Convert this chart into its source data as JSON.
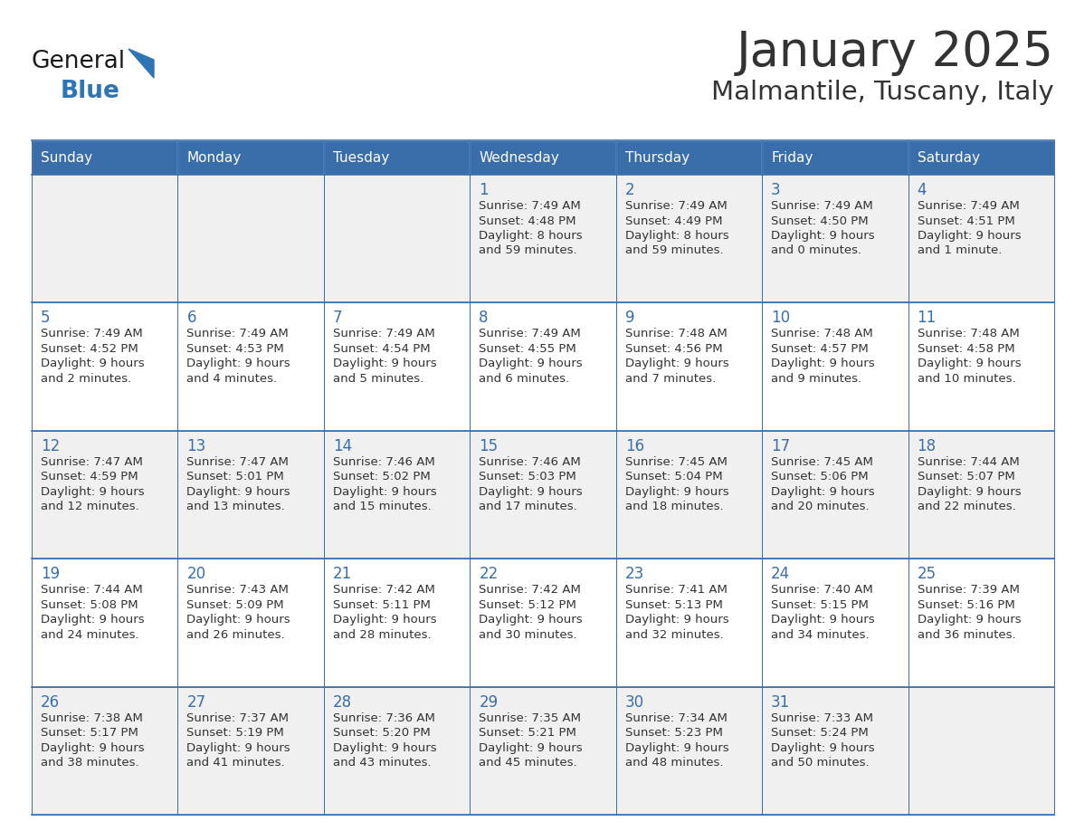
{
  "title": "January 2025",
  "subtitle": "Malmantile, Tuscany, Italy",
  "days_of_week": [
    "Sunday",
    "Monday",
    "Tuesday",
    "Wednesday",
    "Thursday",
    "Friday",
    "Saturday"
  ],
  "header_bg": "#3A6EAA",
  "header_text": "#FFFFFF",
  "cell_bg_white": "#FFFFFF",
  "cell_bg_gray": "#F0F0F0",
  "day_number_color": "#3A6EAA",
  "text_color": "#333333",
  "line_color": "#3A6EAA",
  "logo_general_color": "#1A1A1A",
  "logo_blue_color": "#2E75B6",
  "calendar": [
    [
      {
        "day": null,
        "sunrise": null,
        "sunset": null,
        "daylight": null
      },
      {
        "day": null,
        "sunrise": null,
        "sunset": null,
        "daylight": null
      },
      {
        "day": null,
        "sunrise": null,
        "sunset": null,
        "daylight": null
      },
      {
        "day": 1,
        "sunrise": "7:49 AM",
        "sunset": "4:48 PM",
        "daylight": "8 hours\nand 59 minutes."
      },
      {
        "day": 2,
        "sunrise": "7:49 AM",
        "sunset": "4:49 PM",
        "daylight": "8 hours\nand 59 minutes."
      },
      {
        "day": 3,
        "sunrise": "7:49 AM",
        "sunset": "4:50 PM",
        "daylight": "9 hours\nand 0 minutes."
      },
      {
        "day": 4,
        "sunrise": "7:49 AM",
        "sunset": "4:51 PM",
        "daylight": "9 hours\nand 1 minute."
      }
    ],
    [
      {
        "day": 5,
        "sunrise": "7:49 AM",
        "sunset": "4:52 PM",
        "daylight": "9 hours\nand 2 minutes."
      },
      {
        "day": 6,
        "sunrise": "7:49 AM",
        "sunset": "4:53 PM",
        "daylight": "9 hours\nand 4 minutes."
      },
      {
        "day": 7,
        "sunrise": "7:49 AM",
        "sunset": "4:54 PM",
        "daylight": "9 hours\nand 5 minutes."
      },
      {
        "day": 8,
        "sunrise": "7:49 AM",
        "sunset": "4:55 PM",
        "daylight": "9 hours\nand 6 minutes."
      },
      {
        "day": 9,
        "sunrise": "7:48 AM",
        "sunset": "4:56 PM",
        "daylight": "9 hours\nand 7 minutes."
      },
      {
        "day": 10,
        "sunrise": "7:48 AM",
        "sunset": "4:57 PM",
        "daylight": "9 hours\nand 9 minutes."
      },
      {
        "day": 11,
        "sunrise": "7:48 AM",
        "sunset": "4:58 PM",
        "daylight": "9 hours\nand 10 minutes."
      }
    ],
    [
      {
        "day": 12,
        "sunrise": "7:47 AM",
        "sunset": "4:59 PM",
        "daylight": "9 hours\nand 12 minutes."
      },
      {
        "day": 13,
        "sunrise": "7:47 AM",
        "sunset": "5:01 PM",
        "daylight": "9 hours\nand 13 minutes."
      },
      {
        "day": 14,
        "sunrise": "7:46 AM",
        "sunset": "5:02 PM",
        "daylight": "9 hours\nand 15 minutes."
      },
      {
        "day": 15,
        "sunrise": "7:46 AM",
        "sunset": "5:03 PM",
        "daylight": "9 hours\nand 17 minutes."
      },
      {
        "day": 16,
        "sunrise": "7:45 AM",
        "sunset": "5:04 PM",
        "daylight": "9 hours\nand 18 minutes."
      },
      {
        "day": 17,
        "sunrise": "7:45 AM",
        "sunset": "5:06 PM",
        "daylight": "9 hours\nand 20 minutes."
      },
      {
        "day": 18,
        "sunrise": "7:44 AM",
        "sunset": "5:07 PM",
        "daylight": "9 hours\nand 22 minutes."
      }
    ],
    [
      {
        "day": 19,
        "sunrise": "7:44 AM",
        "sunset": "5:08 PM",
        "daylight": "9 hours\nand 24 minutes."
      },
      {
        "day": 20,
        "sunrise": "7:43 AM",
        "sunset": "5:09 PM",
        "daylight": "9 hours\nand 26 minutes."
      },
      {
        "day": 21,
        "sunrise": "7:42 AM",
        "sunset": "5:11 PM",
        "daylight": "9 hours\nand 28 minutes."
      },
      {
        "day": 22,
        "sunrise": "7:42 AM",
        "sunset": "5:12 PM",
        "daylight": "9 hours\nand 30 minutes."
      },
      {
        "day": 23,
        "sunrise": "7:41 AM",
        "sunset": "5:13 PM",
        "daylight": "9 hours\nand 32 minutes."
      },
      {
        "day": 24,
        "sunrise": "7:40 AM",
        "sunset": "5:15 PM",
        "daylight": "9 hours\nand 34 minutes."
      },
      {
        "day": 25,
        "sunrise": "7:39 AM",
        "sunset": "5:16 PM",
        "daylight": "9 hours\nand 36 minutes."
      }
    ],
    [
      {
        "day": 26,
        "sunrise": "7:38 AM",
        "sunset": "5:17 PM",
        "daylight": "9 hours\nand 38 minutes."
      },
      {
        "day": 27,
        "sunrise": "7:37 AM",
        "sunset": "5:19 PM",
        "daylight": "9 hours\nand 41 minutes."
      },
      {
        "day": 28,
        "sunrise": "7:36 AM",
        "sunset": "5:20 PM",
        "daylight": "9 hours\nand 43 minutes."
      },
      {
        "day": 29,
        "sunrise": "7:35 AM",
        "sunset": "5:21 PM",
        "daylight": "9 hours\nand 45 minutes."
      },
      {
        "day": 30,
        "sunrise": "7:34 AM",
        "sunset": "5:23 PM",
        "daylight": "9 hours\nand 48 minutes."
      },
      {
        "day": 31,
        "sunrise": "7:33 AM",
        "sunset": "5:24 PM",
        "daylight": "9 hours\nand 50 minutes."
      },
      {
        "day": null,
        "sunrise": null,
        "sunset": null,
        "daylight": null
      }
    ]
  ]
}
